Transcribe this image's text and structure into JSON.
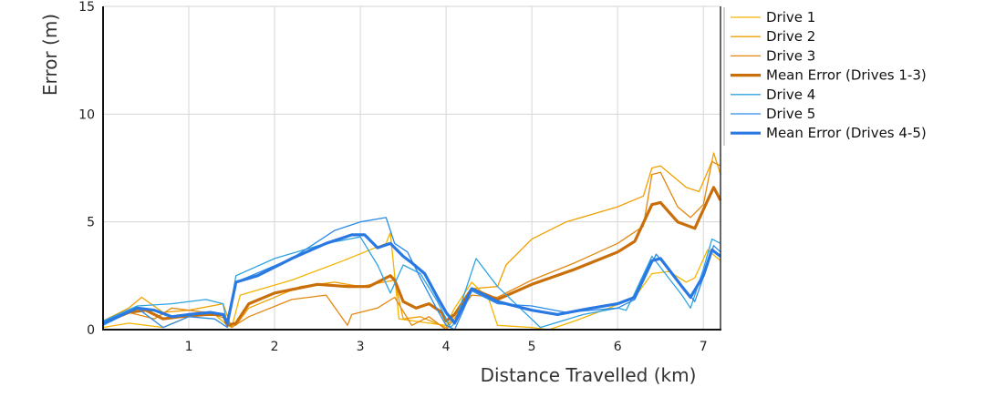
{
  "chart_data": {
    "type": "line",
    "title": "",
    "xlabel": "Distance Travelled (km)",
    "ylabel": "Error (m)",
    "xlim": [
      0,
      7.2
    ],
    "ylim": [
      0,
      15
    ],
    "xticks": [
      "1",
      "2",
      "3",
      "4",
      "5",
      "6",
      "7"
    ],
    "yticks": [
      "0",
      "5",
      "10",
      "15"
    ],
    "grid": true,
    "legend_position": "right",
    "series": [
      {
        "name": "Drive 1",
        "color": "#f5b400",
        "width": 1.3,
        "x": [
          0,
          0.3,
          0.7,
          1.0,
          1.3,
          1.45,
          1.5,
          1.6,
          2.2,
          2.8,
          3.3,
          3.35,
          3.45,
          3.8,
          4.0,
          4.1,
          4.3,
          4.5,
          4.6,
          5.0,
          5.2,
          5.5,
          5.9,
          6.2,
          6.4,
          6.6,
          6.8,
          6.9,
          7.05,
          7.2
        ],
        "y": [
          0.1,
          0.3,
          0.1,
          0.6,
          0.7,
          0.2,
          0.1,
          1.6,
          2.3,
          3.2,
          4.0,
          4.5,
          0.5,
          0.3,
          0.2,
          1.0,
          2.2,
          1.4,
          0.2,
          0.1,
          0.0,
          0.4,
          1.0,
          1.5,
          2.6,
          2.7,
          2.2,
          2.4,
          3.7,
          3.2
        ]
      },
      {
        "name": "Drive 2",
        "color": "#f0a000",
        "width": 1.3,
        "x": [
          0,
          0.3,
          0.45,
          0.7,
          1.0,
          1.4,
          1.48,
          1.55,
          1.7,
          2.3,
          2.7,
          3.0,
          3.4,
          3.5,
          3.7,
          4.0,
          4.3,
          4.6,
          4.7,
          5.0,
          5.4,
          6.0,
          6.3,
          6.4,
          6.5,
          6.8,
          6.95,
          7.1,
          7.12,
          7.2
        ],
        "y": [
          0.4,
          1.0,
          1.5,
          0.8,
          0.9,
          1.2,
          0.3,
          0.2,
          1.0,
          2.0,
          2.2,
          2.0,
          2.3,
          0.5,
          0.6,
          0.1,
          1.9,
          2.0,
          3.0,
          4.2,
          5.0,
          5.7,
          6.2,
          7.5,
          7.6,
          6.6,
          6.4,
          7.8,
          8.2,
          7.2
        ]
      },
      {
        "name": "Drive 3",
        "color": "#e3870f",
        "width": 1.3,
        "x": [
          0,
          0.3,
          0.6,
          0.8,
          1.2,
          1.45,
          1.5,
          1.7,
          2.2,
          2.6,
          2.85,
          2.9,
          3.2,
          3.4,
          3.6,
          3.8,
          4.0,
          4.3,
          4.6,
          5.0,
          5.5,
          6.0,
          6.3,
          6.4,
          6.5,
          6.7,
          6.85,
          7.0,
          7.1,
          7.2
        ],
        "y": [
          0.3,
          0.8,
          0.5,
          1.0,
          0.8,
          0.5,
          0.1,
          0.6,
          1.4,
          1.6,
          0.2,
          0.7,
          1.0,
          1.5,
          0.2,
          0.6,
          0.0,
          1.6,
          1.5,
          2.3,
          3.1,
          4.0,
          4.8,
          7.2,
          7.3,
          5.7,
          5.2,
          5.8,
          7.8,
          7.6
        ]
      },
      {
        "name": "Mean Error (Drives 1-3)",
        "color": "#c96e08",
        "width": 3.2,
        "x": [
          0,
          0.3,
          0.5,
          0.7,
          0.9,
          1.2,
          1.4,
          1.45,
          1.55,
          1.7,
          2.0,
          2.5,
          2.85,
          3.1,
          3.35,
          3.4,
          3.5,
          3.65,
          3.8,
          3.95,
          4.0,
          4.1,
          4.3,
          4.6,
          5.0,
          5.5,
          6.0,
          6.2,
          6.4,
          6.5,
          6.7,
          6.9,
          7.05,
          7.12,
          7.2
        ],
        "y": [
          0.3,
          0.8,
          0.9,
          0.5,
          0.6,
          0.7,
          0.7,
          0.2,
          0.3,
          1.2,
          1.7,
          2.1,
          2.0,
          2.0,
          2.5,
          2.3,
          1.3,
          1.0,
          1.2,
          0.8,
          0.4,
          0.7,
          1.9,
          1.4,
          2.1,
          2.8,
          3.6,
          4.1,
          5.8,
          5.9,
          5.0,
          4.7,
          6.0,
          6.6,
          6.0
        ]
      },
      {
        "name": "Drive 4",
        "color": "#2ea3e3",
        "width": 1.3,
        "x": [
          0,
          0.4,
          0.8,
          1.2,
          1.4,
          1.45,
          1.55,
          2.0,
          2.6,
          3.0,
          3.2,
          3.35,
          3.5,
          3.7,
          3.9,
          4.05,
          4.1,
          4.35,
          4.6,
          5.1,
          5.6,
          6.0,
          6.1,
          6.2,
          6.4,
          6.75,
          6.85,
          7.0,
          7.1,
          7.2
        ],
        "y": [
          0.4,
          1.1,
          1.2,
          1.4,
          1.2,
          0.2,
          2.5,
          3.3,
          4.0,
          4.3,
          3.0,
          1.7,
          3.0,
          2.6,
          1.3,
          0.1,
          0.3,
          3.3,
          2.0,
          0.1,
          0.7,
          1.0,
          0.9,
          1.7,
          3.4,
          1.6,
          1.0,
          2.8,
          4.2,
          4.0
        ]
      },
      {
        "name": "Drive 5",
        "color": "#2b8ae8",
        "width": 1.3,
        "x": [
          0,
          0.4,
          0.7,
          1.0,
          1.3,
          1.45,
          1.55,
          2.2,
          2.7,
          3.0,
          3.3,
          3.4,
          3.55,
          3.7,
          3.9,
          4.0,
          4.1,
          4.3,
          4.6,
          5.0,
          5.4,
          6.0,
          6.2,
          6.45,
          6.8,
          6.9,
          7.05,
          7.12,
          7.2
        ],
        "y": [
          0.2,
          1.0,
          0.1,
          0.6,
          0.5,
          0.1,
          2.2,
          3.3,
          4.6,
          5.0,
          5.2,
          4.0,
          3.6,
          2.4,
          0.9,
          0.2,
          0.0,
          1.8,
          1.2,
          1.1,
          0.8,
          1.0,
          1.4,
          3.5,
          1.8,
          1.3,
          3.0,
          3.9,
          3.6
        ]
      },
      {
        "name": "Mean Error (Drives 4-5)",
        "color": "#2a78e2",
        "width": 3.2,
        "x": [
          0,
          0.4,
          0.6,
          0.8,
          1.0,
          1.25,
          1.4,
          1.45,
          1.55,
          1.8,
          2.2,
          2.6,
          2.9,
          3.05,
          3.2,
          3.35,
          3.5,
          3.6,
          3.75,
          3.9,
          4.0,
          4.1,
          4.3,
          4.6,
          5.0,
          5.3,
          5.7,
          6.0,
          6.2,
          6.4,
          6.5,
          6.75,
          6.85,
          7.0,
          7.1,
          7.2
        ],
        "y": [
          0.3,
          1.0,
          0.9,
          0.6,
          0.7,
          0.8,
          0.7,
          0.3,
          2.2,
          2.5,
          3.3,
          4.0,
          4.4,
          4.4,
          3.8,
          4.0,
          3.4,
          3.1,
          2.6,
          1.5,
          0.8,
          0.3,
          1.9,
          1.3,
          0.9,
          0.7,
          1.0,
          1.2,
          1.5,
          3.2,
          3.3,
          2.0,
          1.5,
          2.5,
          3.7,
          3.4
        ]
      }
    ]
  }
}
